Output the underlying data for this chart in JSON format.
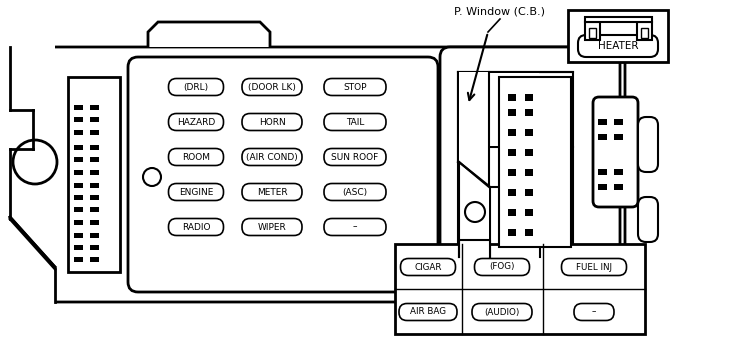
{
  "bg_color": "#ffffff",
  "line_color": "#000000",
  "main_fuses_grid": [
    [
      "(DRL)",
      "(DOOR LK)",
      "STOP"
    ],
    [
      "HAZARD",
      "HORN",
      "TAIL"
    ],
    [
      "ROOM",
      "(AIR COND)",
      "SUN ROOF"
    ],
    [
      "ENGINE",
      "METER",
      "(ASC)"
    ],
    [
      "RADIO",
      "WIPER",
      "–"
    ]
  ],
  "bottom_fuses_row1": [
    "CIGAR",
    "(FOG)",
    "FUEL INJ"
  ],
  "bottom_fuses_row2": [
    "AIR BAG",
    "(AUDIO)",
    "–"
  ],
  "annotation_text": "P. Window (C.B.)",
  "heater_label": "HEATER"
}
